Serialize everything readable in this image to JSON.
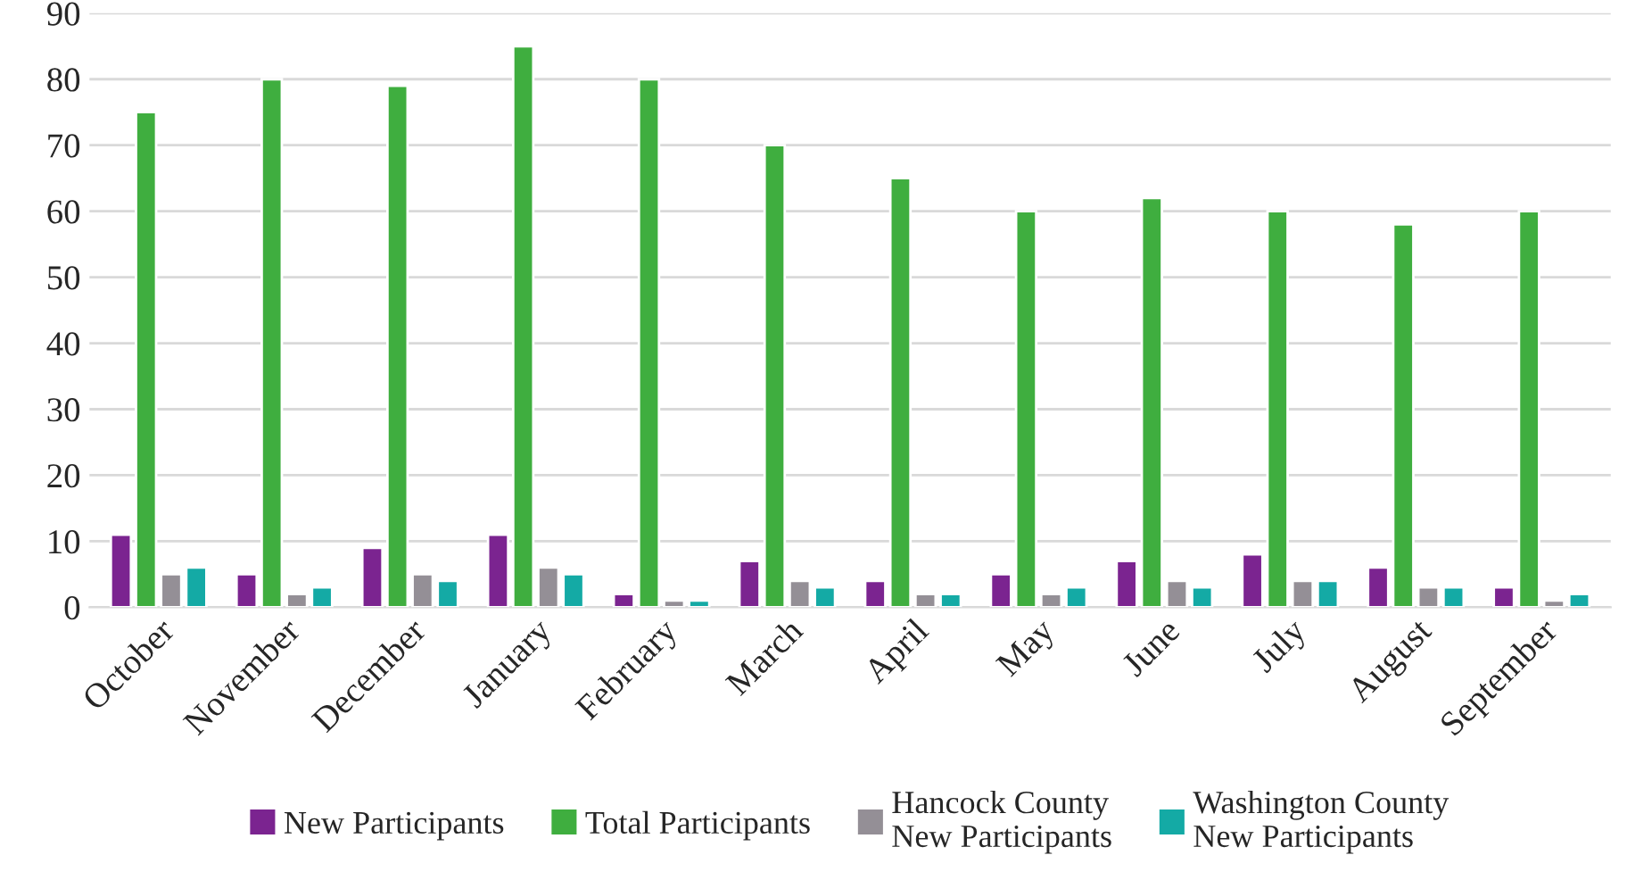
{
  "chart_data": {
    "type": "bar",
    "categories": [
      "October",
      "November",
      "December",
      "January",
      "February",
      "March",
      "April",
      "May",
      "June",
      "July",
      "August",
      "September"
    ],
    "series": [
      {
        "name": "New Participants",
        "color": "#7b2490",
        "values": [
          11,
          5,
          9,
          11,
          2,
          7,
          4,
          5,
          7,
          8,
          6,
          3
        ]
      },
      {
        "name": "Total Participants",
        "color": "#3fae3f",
        "values": [
          75,
          80,
          79,
          85,
          80,
          70,
          65,
          60,
          62,
          60,
          58,
          60
        ]
      },
      {
        "name": "Hancock County\nNew Participants",
        "color": "#948f96",
        "values": [
          5,
          2,
          5,
          6,
          1,
          4,
          2,
          2,
          4,
          4,
          3,
          1
        ]
      },
      {
        "name": "Washington County\nNew Participants",
        "color": "#14aaa5",
        "values": [
          6,
          3,
          4,
          5,
          1,
          3,
          2,
          3,
          3,
          4,
          3,
          2
        ]
      }
    ],
    "ylim": [
      0,
      90
    ],
    "yticks": [
      0,
      10,
      20,
      30,
      40,
      50,
      60,
      70,
      80,
      90
    ],
    "grid": "y",
    "legend": "bottom"
  }
}
